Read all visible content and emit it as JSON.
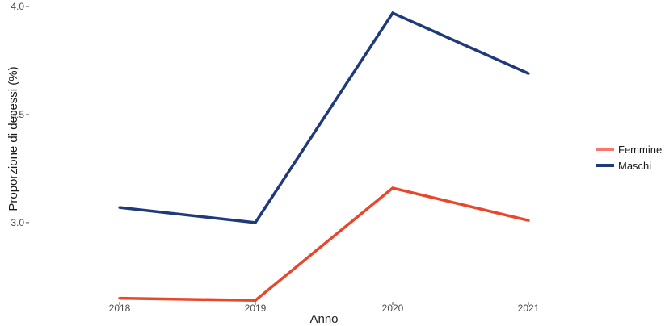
{
  "chart_data": {
    "type": "line",
    "xlabel": "Anno",
    "ylabel": "Proporzione di decessi (%)",
    "x": [
      "2018",
      "2019",
      "2020",
      "2021"
    ],
    "yticks": [
      "3.0",
      "3.5",
      "4.0"
    ],
    "ylim": [
      2.63,
      4.03
    ],
    "grid": false,
    "legend_position": "right",
    "series": [
      {
        "name": "Femmine",
        "color": "#e8472b",
        "legend_color": "#f8766d",
        "values": [
          2.65,
          2.64,
          3.16,
          3.01
        ]
      },
      {
        "name": "Maschi",
        "color": "#1f3a7a",
        "legend_color": "#1f3a7a",
        "values": [
          3.07,
          3.0,
          3.97,
          3.69
        ]
      }
    ]
  }
}
